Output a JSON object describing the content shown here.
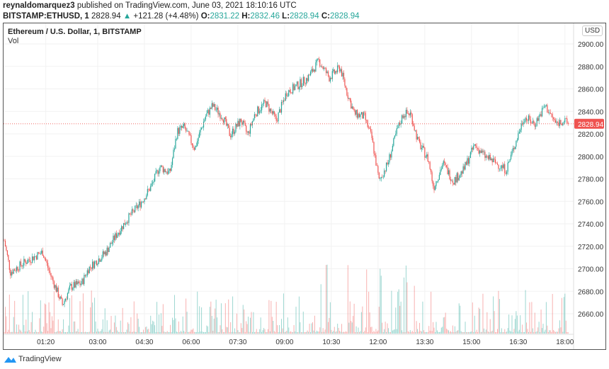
{
  "header": {
    "author": "reynaldomarquez3",
    "published": "published on TradingView.com, June 03, 2021 18:10:16 UTC",
    "symbol": "BITSTAMP:ETHUSD, 1",
    "last": "2828.94",
    "change": "+121.28 (+4.48%)",
    "o_label": "O:",
    "o": "2831.22",
    "h_label": "H:",
    "h": "2832.46",
    "l_label": "L:",
    "l": "2828.94",
    "c_label": "C:",
    "c": "2828.94"
  },
  "chart_title": "Ethereum / U.S. Dollar, 1, BITSTAMP",
  "vol_label": "Vol",
  "currency": "USD",
  "brand": "TradingView",
  "colors": {
    "up": "#26a69a",
    "down": "#ef5350",
    "price_tag": "#ef5350"
  },
  "chart_data": {
    "type": "candlestick",
    "x_ticks": [
      "01:20",
      "03:00",
      "04:30",
      "06:00",
      "07:30",
      "09:00",
      "10:30",
      "12:00",
      "13:30",
      "15:00",
      "16:30",
      "18:00"
    ],
    "y_ticks": [
      "2900.00",
      "2880.00",
      "2860.00",
      "2840.00",
      "2820.00",
      "2800.00",
      "2780.00",
      "2760.00",
      "2740.00",
      "2720.00",
      "2700.00",
      "2680.00",
      "2660.00"
    ],
    "ylim": [
      2650,
      2910
    ],
    "last_price": "2828.94",
    "grid": true,
    "price_path": [
      [
        "00:00",
        2725
      ],
      [
        "00:12",
        2697
      ],
      [
        "00:40",
        2706
      ],
      [
        "01:14",
        2715
      ],
      [
        "01:27",
        2697
      ],
      [
        "01:52",
        2668
      ],
      [
        "02:08",
        2684
      ],
      [
        "02:29",
        2687
      ],
      [
        "02:42",
        2700
      ],
      [
        "03:16",
        2715
      ],
      [
        "03:37",
        2731
      ],
      [
        "03:57",
        2744
      ],
      [
        "04:25",
        2760
      ],
      [
        "04:45",
        2775
      ],
      [
        "04:59",
        2791
      ],
      [
        "05:19",
        2785
      ],
      [
        "05:33",
        2822
      ],
      [
        "05:46",
        2826
      ],
      [
        "06:07",
        2807
      ],
      [
        "06:27",
        2835
      ],
      [
        "06:41",
        2845
      ],
      [
        "07:01",
        2835
      ],
      [
        "07:15",
        2819
      ],
      [
        "07:36",
        2832
      ],
      [
        "07:49",
        2819
      ],
      [
        "08:03",
        2838
      ],
      [
        "08:23",
        2848
      ],
      [
        "08:44",
        2832
      ],
      [
        "09:04",
        2857
      ],
      [
        "09:25",
        2863
      ],
      [
        "09:45",
        2870
      ],
      [
        "10:06",
        2885
      ],
      [
        "10:26",
        2870
      ],
      [
        "10:47",
        2879
      ],
      [
        "11:00",
        2857
      ],
      [
        "11:14",
        2838
      ],
      [
        "11:34",
        2835
      ],
      [
        "11:48",
        2816
      ],
      [
        "12:02",
        2778
      ],
      [
        "12:19",
        2794
      ],
      [
        "12:36",
        2822
      ],
      [
        "12:49",
        2838
      ],
      [
        "13:03",
        2838
      ],
      [
        "13:17",
        2813
      ],
      [
        "13:37",
        2797
      ],
      [
        "13:47",
        2772
      ],
      [
        "14:05",
        2794
      ],
      [
        "14:25",
        2778
      ],
      [
        "14:45",
        2788
      ],
      [
        "15:06",
        2810
      ],
      [
        "15:26",
        2800
      ],
      [
        "15:47",
        2794
      ],
      [
        "16:07",
        2788
      ],
      [
        "16:21",
        2807
      ],
      [
        "16:41",
        2835
      ],
      [
        "17:02",
        2829
      ],
      [
        "17:22",
        2845
      ],
      [
        "17:43",
        2829
      ],
      [
        "17:56",
        2832
      ],
      [
        "18:06",
        2828.94
      ]
    ]
  }
}
